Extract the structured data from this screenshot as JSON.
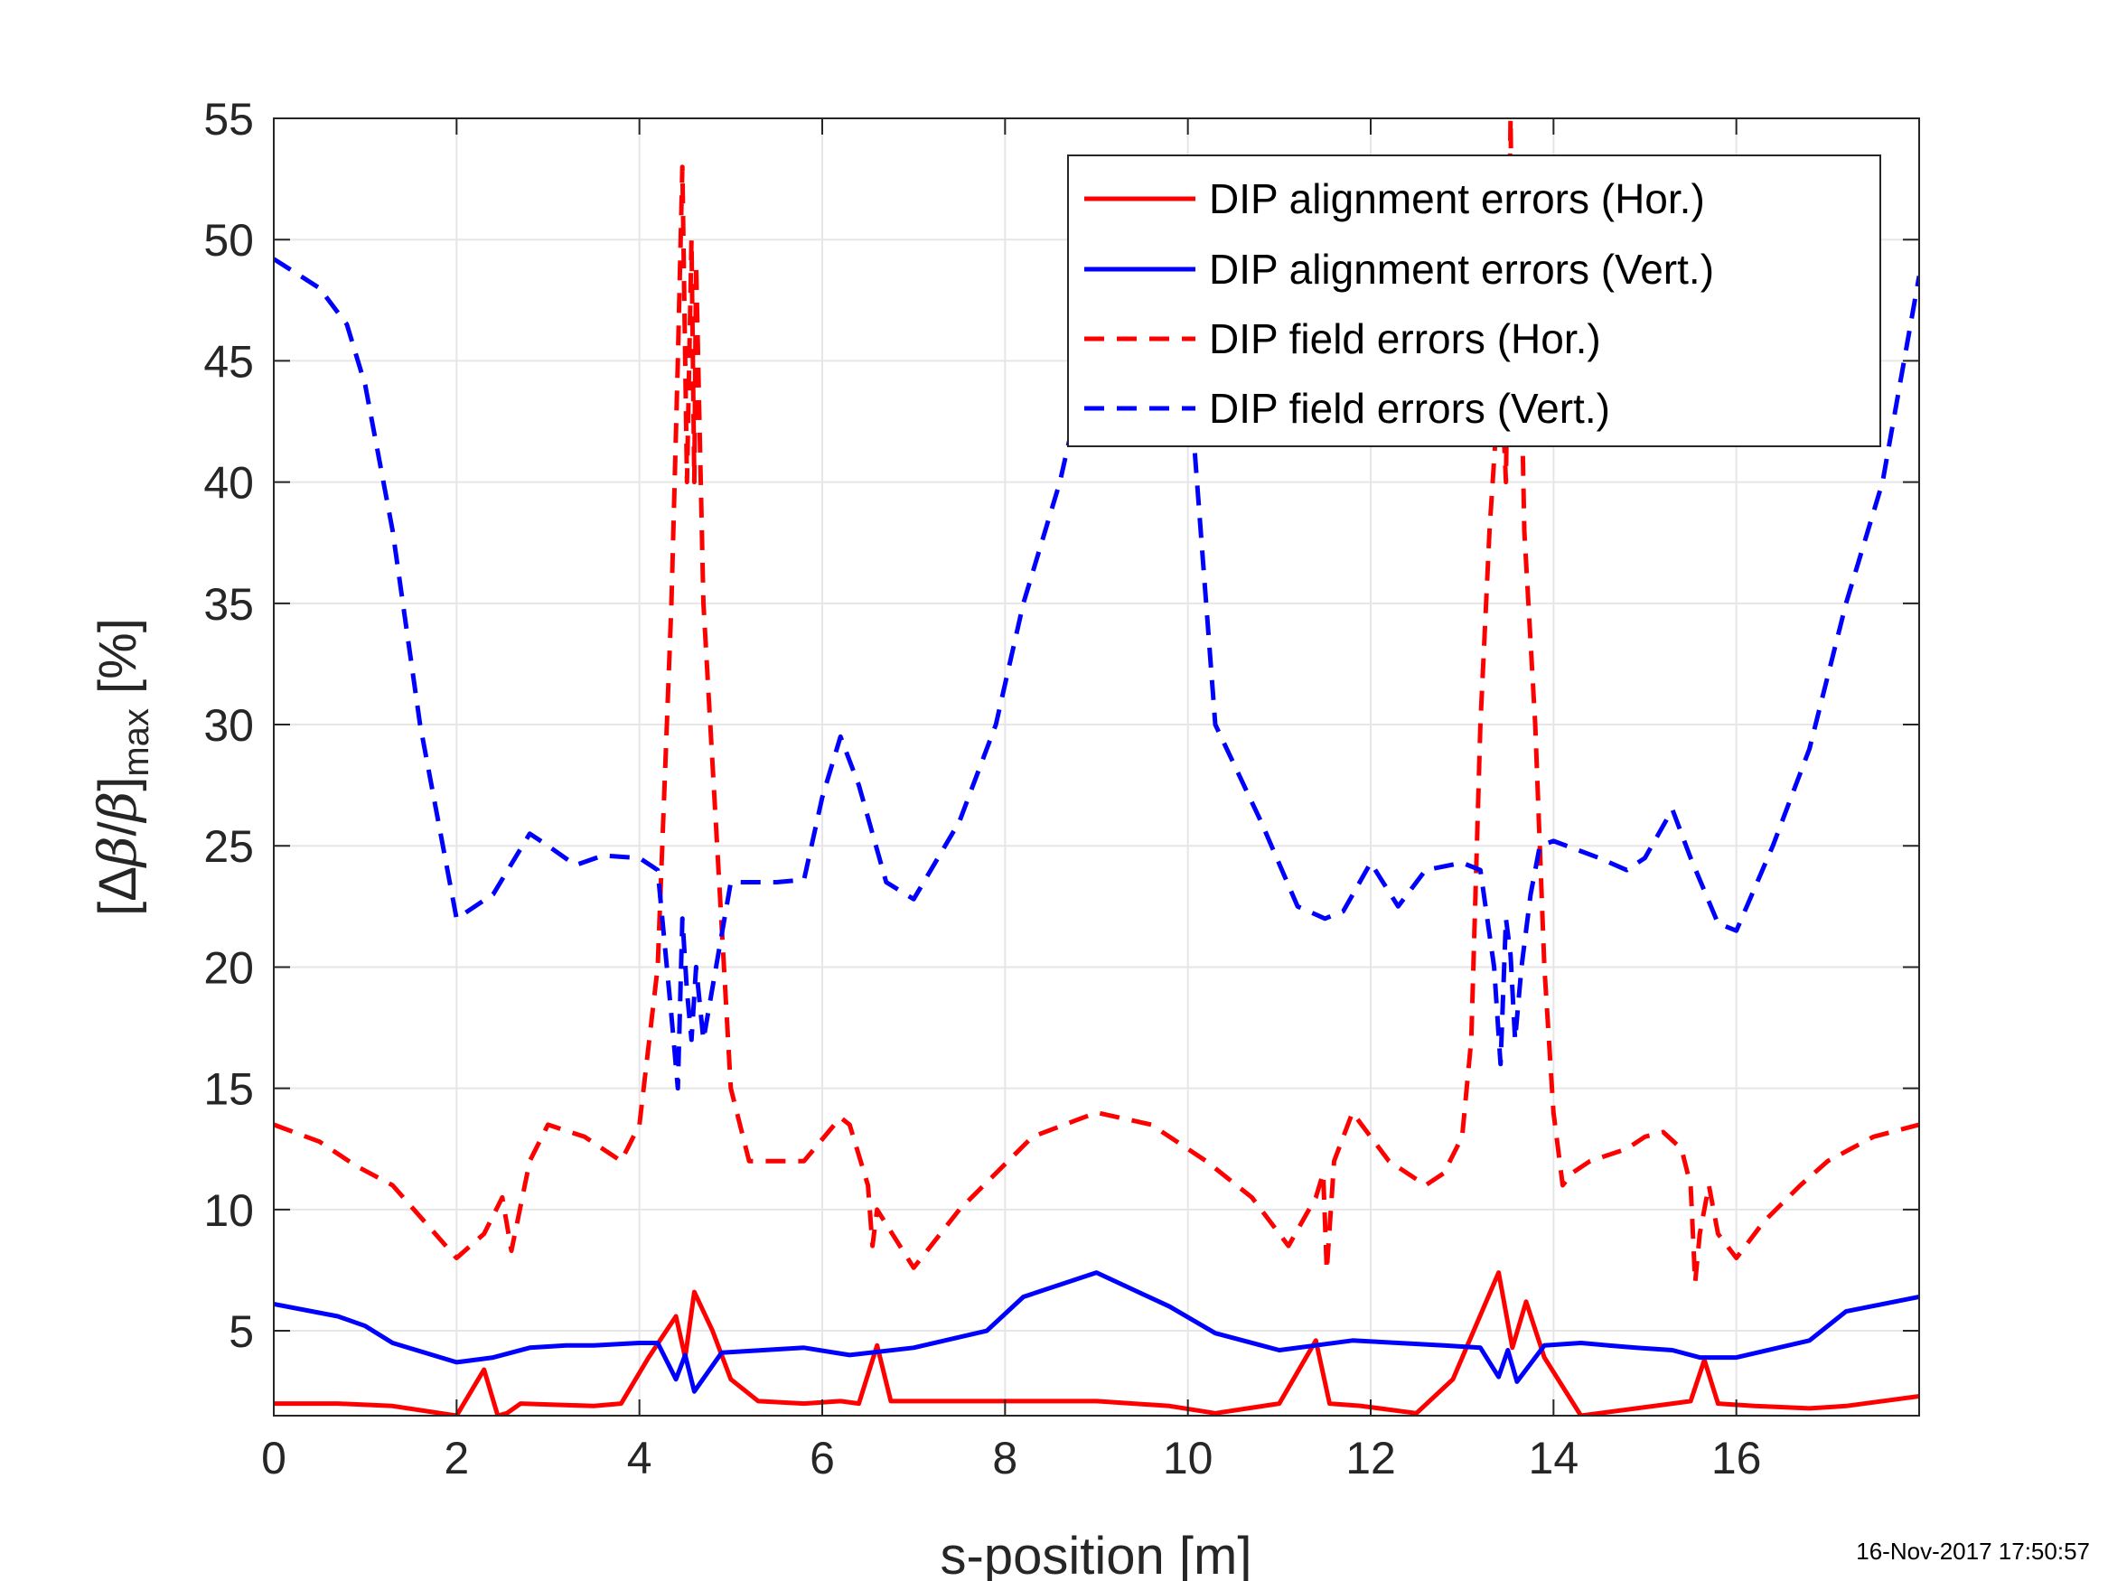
{
  "timestamp": "16-Nov-2017 17:50:57",
  "chart_data": {
    "type": "line",
    "xlabel": "s-position [m]",
    "ylabel_parts": [
      "[Δ",
      "β",
      "/",
      "β",
      "]",
      "max",
      " [%]"
    ],
    "xlim": [
      0,
      18
    ],
    "ylim": [
      1.5,
      55
    ],
    "xticks": [
      0,
      2,
      4,
      6,
      8,
      10,
      12,
      14,
      16
    ],
    "yticks": [
      5,
      10,
      15,
      20,
      25,
      30,
      35,
      40,
      45,
      50,
      55
    ],
    "grid": true,
    "legend_position": "top-right",
    "colors": {
      "hor": "#ff0000",
      "vert": "#0000ff",
      "axis": "#262626",
      "grid": "#e6e6e6"
    },
    "series": [
      {
        "name": "DIP alignment errors (Hor.)",
        "color": "#ff0000",
        "dash": "solid",
        "x": [
          0,
          0.7,
          1.3,
          2.0,
          2.3,
          2.45,
          2.55,
          2.7,
          3.5,
          3.8,
          4.1,
          4.4,
          4.5,
          4.6,
          4.8,
          5.0,
          5.3,
          5.8,
          6.2,
          6.4,
          6.6,
          6.75,
          7.0,
          8.0,
          9.0,
          9.8,
          10.3,
          11.0,
          11.4,
          11.55,
          11.9,
          12.5,
          12.9,
          13.4,
          13.55,
          13.7,
          13.9,
          14.3,
          15.3,
          15.5,
          15.65,
          15.8,
          16.2,
          16.8,
          17.2,
          18.0
        ],
        "y": [
          2.0,
          2.0,
          1.9,
          1.5,
          3.4,
          1.5,
          1.6,
          2.0,
          1.9,
          2.0,
          3.9,
          5.6,
          3.9,
          6.6,
          5.0,
          3.0,
          2.1,
          2.0,
          2.1,
          2.0,
          4.4,
          2.1,
          2.1,
          2.1,
          2.1,
          1.9,
          1.6,
          2.0,
          4.6,
          2.0,
          1.9,
          1.6,
          3.0,
          7.4,
          4.3,
          6.2,
          3.9,
          1.5,
          2.0,
          2.1,
          3.8,
          2.0,
          1.9,
          1.8,
          1.9,
          2.3
        ]
      },
      {
        "name": "DIP alignment errors (Vert.)",
        "color": "#0000ff",
        "dash": "solid",
        "x": [
          0,
          0.7,
          1.0,
          1.3,
          2.0,
          2.4,
          2.8,
          3.2,
          3.5,
          4.0,
          4.2,
          4.4,
          4.5,
          4.6,
          4.9,
          5.8,
          6.3,
          7.0,
          7.8,
          8.2,
          9.0,
          9.8,
          10.3,
          11.0,
          11.4,
          11.8,
          12.3,
          12.8,
          13.2,
          13.4,
          13.5,
          13.6,
          13.9,
          14.3,
          14.6,
          14.9,
          15.3,
          15.6,
          16.0,
          16.8,
          17.2,
          18.0
        ],
        "y": [
          6.1,
          5.6,
          5.2,
          4.5,
          3.7,
          3.9,
          4.3,
          4.4,
          4.4,
          4.5,
          4.5,
          3.0,
          4.0,
          2.5,
          4.1,
          4.3,
          4.0,
          4.3,
          5.0,
          6.4,
          7.4,
          6.0,
          4.9,
          4.2,
          4.4,
          4.6,
          4.5,
          4.4,
          4.3,
          3.1,
          4.2,
          2.9,
          4.4,
          4.5,
          4.4,
          4.3,
          4.2,
          3.9,
          3.9,
          4.6,
          5.8,
          6.4
        ]
      },
      {
        "name": "DIP field errors (Hor.)",
        "color": "#ff0000",
        "dash": "dashed",
        "x": [
          0,
          0.5,
          0.9,
          1.3,
          2.0,
          2.3,
          2.5,
          2.6,
          2.8,
          3.0,
          3.4,
          3.8,
          4.0,
          4.2,
          4.35,
          4.42,
          4.47,
          4.52,
          4.57,
          4.6,
          4.62,
          4.66,
          4.7,
          4.85,
          5.0,
          5.2,
          5.4,
          5.8,
          6.2,
          6.3,
          6.5,
          6.55,
          6.6,
          6.8,
          7.0,
          7.5,
          8.3,
          9.0,
          9.6,
          10.2,
          10.7,
          11.1,
          11.4,
          11.48,
          11.52,
          11.6,
          11.8,
          12.2,
          12.6,
          12.8,
          13.0,
          13.1,
          13.2,
          13.3,
          13.42,
          13.48,
          13.53,
          13.57,
          13.62,
          13.68,
          13.8,
          13.9,
          14.0,
          14.1,
          14.2,
          14.4,
          14.8,
          15.0,
          15.2,
          15.4,
          15.5,
          15.55,
          15.6,
          15.7,
          15.8,
          16.0,
          16.3,
          16.7,
          17.0,
          17.5,
          18.0
        ],
        "y": [
          13.5,
          12.8,
          11.8,
          11.0,
          8.0,
          9.0,
          10.5,
          8.3,
          12.0,
          13.5,
          13.0,
          12.0,
          13.5,
          20.0,
          35.0,
          45.0,
          53.0,
          40.0,
          50.0,
          40.0,
          49.0,
          42.0,
          35.0,
          25.0,
          15.0,
          12.0,
          12.0,
          12.0,
          13.8,
          13.5,
          11.0,
          8.5,
          10.0,
          8.8,
          7.6,
          10.0,
          13.0,
          14.0,
          13.5,
          12.0,
          10.5,
          8.5,
          10.5,
          11.5,
          7.5,
          12.0,
          14.0,
          12.0,
          11.0,
          11.5,
          13.0,
          17.0,
          30.0,
          38.0,
          45.0,
          40.0,
          55.0,
          42.0,
          50.0,
          38.0,
          30.0,
          20.0,
          14.0,
          11.0,
          11.5,
          12.0,
          12.5,
          13.0,
          13.2,
          12.5,
          11.0,
          7.0,
          9.0,
          11.0,
          9.0,
          8.0,
          9.5,
          11.0,
          12.0,
          13.0,
          13.5
        ]
      },
      {
        "name": "DIP field errors (Vert.)",
        "color": "#0000ff",
        "dash": "dashed",
        "x": [
          0,
          0.5,
          0.8,
          1.0,
          1.3,
          1.6,
          2.0,
          2.4,
          2.8,
          3.0,
          3.3,
          3.6,
          4.0,
          4.2,
          4.35,
          4.42,
          4.47,
          4.52,
          4.57,
          4.62,
          4.7,
          5.0,
          5.5,
          5.8,
          6.0,
          6.2,
          6.4,
          6.7,
          7.0,
          7.5,
          7.9,
          8.2,
          8.6,
          8.9,
          9.4,
          9.7,
          10.0,
          10.3,
          10.8,
          11.2,
          11.5,
          11.7,
          12.0,
          12.3,
          12.6,
          13.0,
          13.2,
          13.35,
          13.42,
          13.48,
          13.53,
          13.58,
          13.65,
          13.75,
          13.85,
          14.0,
          14.5,
          14.8,
          15.0,
          15.3,
          15.5,
          15.8,
          16.0,
          16.4,
          16.8,
          17.2,
          17.6,
          18.0
        ],
        "y": [
          49.2,
          48.0,
          46.5,
          44.0,
          38.0,
          30.0,
          22.0,
          23.0,
          25.5,
          25.0,
          24.2,
          24.6,
          24.5,
          24.0,
          18.0,
          15.0,
          22.0,
          19.0,
          17.0,
          20.0,
          17.0,
          23.5,
          23.5,
          23.6,
          27.0,
          29.5,
          27.5,
          23.5,
          22.8,
          26.0,
          30.0,
          35.0,
          40.0,
          45.0,
          48.0,
          47.0,
          45.0,
          30.0,
          26.0,
          22.5,
          22.0,
          22.3,
          24.3,
          22.5,
          24.0,
          24.3,
          24.0,
          20.0,
          16.0,
          22.0,
          20.5,
          17.0,
          20.0,
          23.0,
          25.0,
          25.2,
          24.5,
          24.0,
          24.5,
          26.5,
          24.5,
          21.8,
          21.5,
          25.0,
          29.0,
          35.0,
          40.0,
          48.5
        ]
      }
    ]
  }
}
